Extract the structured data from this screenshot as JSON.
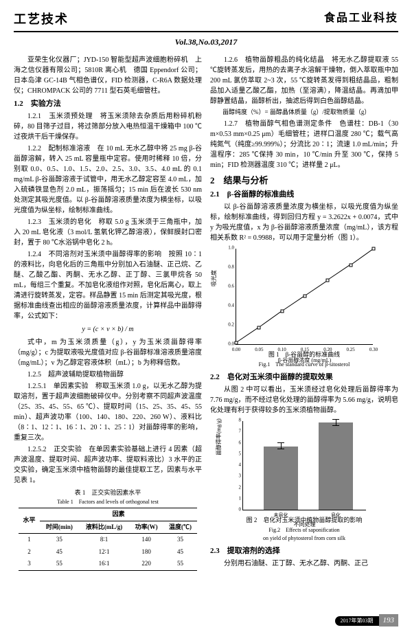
{
  "header": {
    "left": "工艺技术",
    "right": "食品工业科技"
  },
  "vol": "Vol.38,No.03,2017",
  "col1": {
    "p1": "亚荣生化仪器厂；JYD-150 智能型超声波细胞粉碎机　上海之信仪器有限公司；5810R 离心机　德国 Eppendorf 公司；日本岛津 GC-14B 气相色谱仪，FID 检测器，C-R6A 数据处理仪；CHROMPACK 公司的 7711 型石英毛细管柱。",
    "s12": "1.2　实验方法",
    "s121": "1.2.1　玉米须预处理　将玉米须除去杂质后用粉碎机粉碎，80 目筛子过目，将过筛部分放入电热恒温干燥箱中 100 ℃过夜烘干后干燥保存。",
    "s122": "1.2.2　配制标准溶液　在 10 mL 无水乙醇中将 25 mg β-谷甾醇溶解，转入 25 mL 容量瓶中定容。使用时稀释 10 倍，分别取 0.0、0.5、1.0、1.5、2.0、2.5、3.0、3.5、4.0 mL 的 0.1 mg/mL β-谷甾醇溶液于试管中，用无水乙醇定容至 4.0 mL，加入硫磷铁显色剂 2.0 mL，振荡摇匀；15 min 后在波长 530 nm 处测定其吸光度值。以 β-谷甾醇溶液质量浓度为横坐标，以吸光度值为纵坐标，绘制标准曲线。",
    "s123": "1.2.3　玉米须的皂化　称取 5.0 g 玉米须于三角瓶中，加入 20 mL 皂化液（3 mol/L 氢氧化钾乙醇溶液），保鲜膜封口密封，置于 80 ℃水浴锅中皂化 2 h。",
    "s124": "1.2.4　不同溶剂对玉米须中甾醇得率的影响　按照 10∶1 的液料比，向皂化后的三角瓶中分别加入石油醚、正己烷、乙醚、乙酸乙酯、丙酮、无水乙醇、正丁醇、三氯甲烷各 50 mL，每组三个重复。不加皂化液组作对照，皂化后离心，取上清进行旋转蒸发，定容。样品静置 15 min 后测定其吸光度，根据标准曲线查出相应的甾醇溶液质量浓度，计算样品中甾醇得率，公式如下：",
    "formula": "y = (c × v × b) / m",
    "formula_desc": "式中，m 为玉米须质量（g），y 为玉米须甾醇得率（mg/g）；c 为提取液吸光度值对应 β-谷甾醇标准溶液质量溶度（mg/mL）；v 为乙醇定容液体积（mL）；b 为称释倍数。",
    "s125": "1.2.5　超声波辅助提取植物甾醇",
    "s1251": "1.2.5.1　单因素实验　称取玉米须 1.0 g，以无水乙醇为提取溶剂，置于超声波细胞破碎仪中。分别考察不同超声波温度（25、35、45、55、65 ℃）、提取时间（15、25、35、45、55 min）、超声波功率（100、140、180、220、260 W）、液料比（8∶1、12∶1、16∶1、20∶1、25∶1）对甾醇得率的影响，重复三次。",
    "s1252": "1.2.5.2　正交实验　在单因素实验基础上进行 4 因素（超声波温度、提取时间、超声波功率、提取料液比）3 水平的正交实验，确定玉米须中植物甾醇的最佳提取工艺，因素与水平见表 1。",
    "tbl_title": "表 1　正交实验因素水平",
    "tbl_title_en": "Table 1　Factors and levels of orthogonal test",
    "tbl_h": [
      "水平",
      "时间(min)",
      "液料比(mL/g)",
      "功率(W)",
      "温度(℃)"
    ],
    "tbl_r": [
      [
        "1",
        "35",
        "8∶1",
        "140",
        "35"
      ],
      [
        "2",
        "45",
        "12∶1",
        "180",
        "45"
      ],
      [
        "3",
        "55",
        "16∶1",
        "220",
        "55"
      ]
    ]
  },
  "col2": {
    "s126": "1.2.6　植物甾醇粗品的纯化结晶　将无水乙醇提取液 55 ℃旋转蒸发后，用热的去离子水溶解干燥物，倒入萃取瓶中加 200 mL 氯仿萃取 2~3 次，55 ℃旋转蒸发得到粗结晶品，粗制品加入适量乙酸乙酯，加热（至溶满），降温结晶。再滴加甲醇静置结晶，甾醇析出，抽滤后得到白色甾醇结晶。",
    "formula2": "甾醇纯度（%）= 甾醇晶体质量（g）/提取物质量（g）",
    "s127": "1.2.7　植物甾醇气相色谱测定条件　色谱柱：DB-1（30 m×0.53 mm×0.25 μm）毛细管柱；进样口温度 280 ℃；载气高纯氮气（纯度≥99.999%）；分流比 20∶1；流速 1.0 mL/min；升温程序：285 ℃保持 30 min，10 ℃/min 升至 300 ℃，保持 5 min；FID 检测器温度 310 ℃；进样量 2 μL。",
    "s2": "2　结果与分析",
    "s21": "2.1　β-谷甾醇的标准曲线",
    "p21": "以 β-谷甾醇溶液质量浓度为横坐标，以吸光度值为纵坐标，绘制标准曲线，得到回归方程 y = 3.2622x + 0.0074，式中 y 为吸光度值，x 为 β-谷甾醇溶液质量浓度（mg/mL），该方程相关系数 R² = 0.9988，可以用于定量分析（图 1）。",
    "chart1": {
      "x": [
        0,
        0.05,
        0.1,
        0.15,
        0.2,
        0.25,
        0.3
      ],
      "y": [
        0,
        0.2,
        0.4,
        0.6,
        0.8,
        1.0
      ],
      "pts": [
        [
          0,
          0.01
        ],
        [
          0.05,
          0.17
        ],
        [
          0.1,
          0.34
        ],
        [
          0.15,
          0.5
        ],
        [
          0.2,
          0.66
        ],
        [
          0.25,
          0.82
        ],
        [
          0.3,
          0.99
        ]
      ],
      "xlabel": "β-谷甾醇浓度 (mg/mL)",
      "ylabel": "吸光度"
    },
    "fig1": "图 1　β-谷甾醇的标准曲线",
    "fig1en": "Fig.1　The standard curve of β-sitosterol",
    "s22": "2.2　皂化对玉米须中甾醇的提取效果",
    "p22": "从图 2 中可以看出，玉米须经过皂化处理后甾醇得率为 7.76 mg/g，而不经过皂化处理的甾醇得率为 5.66 mg/g，说明皂化处理有利于获得较多的玉米须植物甾醇。",
    "chart2": {
      "yticks": [
        0,
        1,
        2,
        3,
        4,
        5,
        6,
        7,
        8
      ],
      "bars": [
        {
          "label": "未皂化",
          "val": 5.66,
          "err": 0.3
        },
        {
          "label": "皂化",
          "val": 7.76,
          "err": 0.3
        }
      ],
      "xlabel": "不同处理",
      "ylabel": "甾醇得率(mg/g)"
    },
    "fig2": "图 2　皂化对玉米须中植物甾醇提取的影响",
    "fig2en": "Fig.2　Effects of saponification\non yield of phytosterol from corn silk",
    "s23": "2.3　提取溶剂的选择",
    "p23": "分别用石油醚、正丁醇、无水乙醇、丙酮、正己"
  },
  "page": {
    "badge": "2017年第03期",
    "num": "193"
  }
}
